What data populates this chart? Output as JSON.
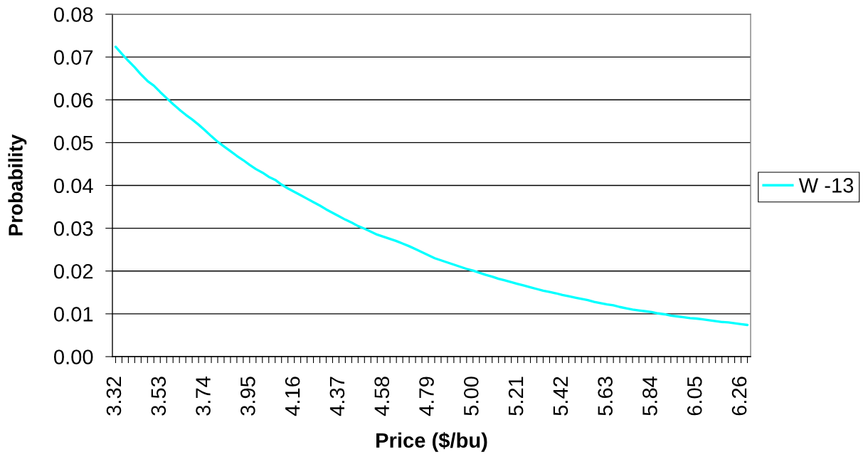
{
  "chart_data": {
    "type": "line",
    "xlabel": "Price ($/bu)",
    "ylabel": "Probability",
    "categories": [
      "3.32",
      null,
      null,
      null,
      null,
      null,
      null,
      "3.53",
      null,
      null,
      null,
      null,
      null,
      null,
      "3.74",
      null,
      null,
      null,
      null,
      null,
      null,
      "3.95",
      null,
      null,
      null,
      null,
      null,
      null,
      "4.16",
      null,
      null,
      null,
      null,
      null,
      null,
      "4.37",
      null,
      null,
      null,
      null,
      null,
      null,
      "4.58",
      null,
      null,
      null,
      null,
      null,
      null,
      "4.79",
      null,
      null,
      null,
      null,
      null,
      null,
      "5.00",
      null,
      null,
      null,
      null,
      null,
      null,
      "5.21",
      null,
      null,
      null,
      null,
      null,
      null,
      "5.42",
      null,
      null,
      null,
      null,
      null,
      null,
      "5.63",
      null,
      null,
      null,
      null,
      null,
      null,
      "5.84",
      null,
      null,
      null,
      null,
      null,
      null,
      "6.05",
      null,
      null,
      null,
      null,
      null,
      null,
      "6.26",
      null
    ],
    "series": [
      {
        "name": "W -13",
        "color": "#00ffff",
        "values": [
          0.0724,
          0.0707,
          0.0691,
          0.0676,
          0.0659,
          0.0644,
          0.0633,
          0.0618,
          0.0604,
          0.059,
          0.0577,
          0.0565,
          0.0554,
          0.0542,
          0.0529,
          0.0515,
          0.0502,
          0.0491,
          0.048,
          0.0469,
          0.0459,
          0.0448,
          0.0438,
          0.043,
          0.042,
          0.0413,
          0.0402,
          0.0393,
          0.0385,
          0.0377,
          0.0369,
          0.0361,
          0.0353,
          0.0344,
          0.0336,
          0.0328,
          0.032,
          0.0313,
          0.0305,
          0.0299,
          0.0292,
          0.0285,
          0.028,
          0.0275,
          0.027,
          0.0264,
          0.0258,
          0.0251,
          0.0244,
          0.0237,
          0.023,
          0.0225,
          0.022,
          0.0215,
          0.021,
          0.0205,
          0.0201,
          0.0196,
          0.0191,
          0.0187,
          0.0182,
          0.0178,
          0.0174,
          0.017,
          0.0166,
          0.0162,
          0.0158,
          0.0154,
          0.0151,
          0.0148,
          0.0144,
          0.0141,
          0.0138,
          0.0135,
          0.0132,
          0.0128,
          0.0125,
          0.0122,
          0.012,
          0.0116,
          0.0113,
          0.011,
          0.0108,
          0.0106,
          0.0104,
          0.0101,
          0.0099,
          0.0096,
          0.0094,
          0.0092,
          0.009,
          0.0089,
          0.0087,
          0.0085,
          0.0083,
          0.0081,
          0.008,
          0.0078,
          0.0076,
          0.0074
        ]
      }
    ],
    "ylim": [
      0,
      0.08
    ],
    "yticks": [
      {
        "value": 0,
        "label": "0.00"
      },
      0.01,
      0.02,
      0.03,
      0.04,
      0.05,
      0.06,
      0.07,
      0.08
    ],
    "grid": "y",
    "legend": "right"
  }
}
